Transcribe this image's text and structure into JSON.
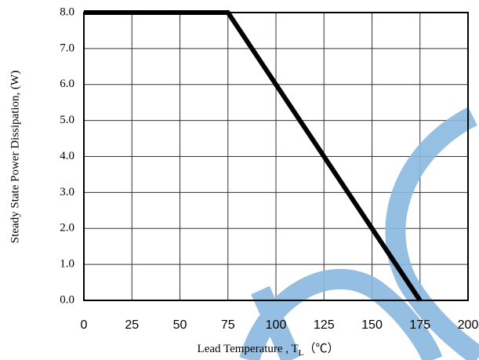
{
  "chart_data": {
    "type": "line",
    "x": [
      0,
      75,
      175
    ],
    "values": [
      8,
      8,
      0
    ],
    "color": "#000000",
    "x_label": [
      "Lead Temperature , T",
      "L",
      "（℃）"
    ],
    "y_label": "Steady State Power Dissipation, (W)",
    "xlim": [
      0,
      200
    ],
    "xticks": [
      0,
      25,
      50,
      75,
      100,
      125,
      150,
      175,
      200
    ],
    "ylim": [
      0,
      8
    ],
    "yticks": [
      {
        "value": 0,
        "label": "0.0"
      },
      {
        "value": 1,
        "label": "1.0"
      },
      {
        "value": 2,
        "label": "2.0"
      },
      {
        "value": 3,
        "label": "3.0"
      },
      {
        "value": 4,
        "label": "4.0"
      },
      {
        "value": 5,
        "label": "5.0"
      },
      {
        "value": 6,
        "label": "6.0"
      },
      {
        "value": 7,
        "label": "7.0"
      },
      {
        "value": 8,
        "label": "8.0"
      }
    ],
    "grid": true
  }
}
